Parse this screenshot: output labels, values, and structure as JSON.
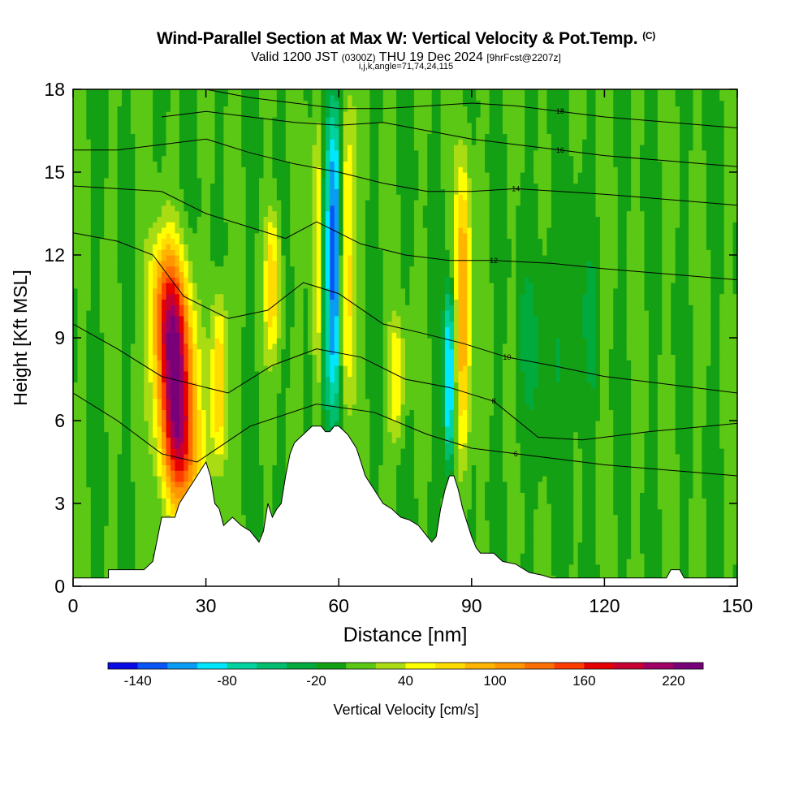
{
  "title": {
    "main": "Wind-Parallel Section at Max W: Vertical Velocity & Pot.Temp.",
    "mark": "(C)",
    "valid_prefix": "Valid 1200 JST",
    "valid_utc": "(0300Z)",
    "valid_date": "THU 19 Dec 2024",
    "forecast": "[9hrFcst@2207z]",
    "indices": "i,j,k,angle=71,74,24,115"
  },
  "chart_data": {
    "type": "heatmap",
    "xlabel": "Distance [nm]",
    "ylabel": "Height [Kft MSL]",
    "xlim": [
      0,
      150
    ],
    "ylim": [
      0,
      18
    ],
    "x_ticks": [
      "0",
      "30",
      "60",
      "90",
      "120",
      "150"
    ],
    "y_ticks": [
      "0",
      "3",
      "6",
      "9",
      "12",
      "15",
      "18"
    ],
    "colorbar": {
      "label": "Vertical Velocity [cm/s]",
      "ticks": [
        "-140",
        "-80",
        "-20",
        "40",
        "100",
        "160",
        "220"
      ],
      "levels": [
        -160,
        -140,
        -120,
        -100,
        -80,
        -60,
        -40,
        -20,
        0,
        20,
        40,
        60,
        80,
        100,
        120,
        140,
        160,
        180,
        200,
        220,
        240
      ],
      "colors": [
        "#0a0ae6",
        "#0a55f5",
        "#0a9bf5",
        "#00e6ff",
        "#00d2a0",
        "#00be6e",
        "#00aa3c",
        "#14a014",
        "#5ac814",
        "#aadc14",
        "#ffff00",
        "#ffdc00",
        "#ffb400",
        "#ff9600",
        "#ff6e00",
        "#ff3c00",
        "#e60000",
        "#c80032",
        "#a00064",
        "#780078"
      ]
    },
    "vertical_velocity_features": [
      {
        "kind": "updraft",
        "x": 23,
        "y_range": [
          2.5,
          12.5
        ],
        "peak": 240
      },
      {
        "kind": "updraft",
        "x": 33,
        "y_range": [
          4,
          11
        ],
        "peak": 80
      },
      {
        "kind": "updraft",
        "x": 45,
        "y_range": [
          8,
          14
        ],
        "peak": 70
      },
      {
        "kind": "downdraft",
        "x": 57,
        "y_range": [
          5.5,
          18
        ],
        "peak": -120
      },
      {
        "kind": "updraft",
        "x": 56,
        "y_range": [
          6,
          18
        ],
        "peak": 80
      },
      {
        "kind": "downdraft",
        "x": 59,
        "y_range": [
          5.5,
          18
        ],
        "peak": -140
      },
      {
        "kind": "updraft",
        "x": 62,
        "y_range": [
          6,
          18
        ],
        "peak": 70
      },
      {
        "kind": "updraft",
        "x": 73,
        "y_range": [
          5,
          10
        ],
        "peak": 60
      },
      {
        "kind": "downdraft",
        "x": 85,
        "y_range": [
          4,
          11
        ],
        "peak": -120
      },
      {
        "kind": "updraft",
        "x": 88,
        "y_range": [
          4,
          16
        ],
        "peak": 100
      }
    ],
    "theta_contours": [
      {
        "label": "6",
        "points": [
          [
            0,
            7.0
          ],
          [
            10,
            6.0
          ],
          [
            20,
            4.8
          ],
          [
            28,
            4.5
          ],
          [
            40,
            5.8
          ],
          [
            55,
            6.6
          ],
          [
            68,
            6.3
          ],
          [
            80,
            5.5
          ],
          [
            90,
            5.0
          ],
          [
            100,
            4.8
          ],
          [
            110,
            4.6
          ],
          [
            120,
            4.4
          ],
          [
            135,
            4.2
          ],
          [
            150,
            4.0
          ]
        ]
      },
      {
        "label": "8",
        "points": [
          [
            0,
            9.5
          ],
          [
            10,
            8.6
          ],
          [
            20,
            7.6
          ],
          [
            30,
            7.2
          ],
          [
            35,
            7.0
          ],
          [
            45,
            8.0
          ],
          [
            55,
            8.6
          ],
          [
            65,
            8.3
          ],
          [
            75,
            7.5
          ],
          [
            85,
            7.2
          ],
          [
            95,
            6.7
          ],
          [
            105,
            5.4
          ],
          [
            115,
            5.3
          ],
          [
            130,
            5.6
          ],
          [
            150,
            5.9
          ]
        ]
      },
      {
        "label": "10",
        "points": [
          [
            0,
            12.8
          ],
          [
            10,
            12.5
          ],
          [
            18,
            12.0
          ],
          [
            25,
            10.5
          ],
          [
            35,
            9.7
          ],
          [
            44,
            10.0
          ],
          [
            52,
            11.0
          ],
          [
            60,
            10.6
          ],
          [
            70,
            9.5
          ],
          [
            78,
            9.2
          ],
          [
            88,
            8.8
          ],
          [
            98,
            8.3
          ],
          [
            108,
            8.0
          ],
          [
            120,
            7.6
          ],
          [
            135,
            7.3
          ],
          [
            150,
            7.0
          ]
        ]
      },
      {
        "label": "12",
        "points": [
          [
            0,
            14.5
          ],
          [
            10,
            14.4
          ],
          [
            20,
            14.3
          ],
          [
            30,
            13.5
          ],
          [
            40,
            13.0
          ],
          [
            48,
            12.6
          ],
          [
            55,
            13.2
          ],
          [
            65,
            12.4
          ],
          [
            75,
            12.0
          ],
          [
            85,
            11.8
          ],
          [
            95,
            11.8
          ],
          [
            108,
            11.7
          ],
          [
            120,
            11.5
          ],
          [
            135,
            11.3
          ],
          [
            150,
            11.1
          ]
        ]
      },
      {
        "label": "14",
        "points": [
          [
            0,
            15.8
          ],
          [
            10,
            15.8
          ],
          [
            20,
            16.0
          ],
          [
            30,
            16.2
          ],
          [
            40,
            15.7
          ],
          [
            50,
            15.3
          ],
          [
            60,
            15.0
          ],
          [
            70,
            14.6
          ],
          [
            80,
            14.3
          ],
          [
            90,
            14.3
          ],
          [
            100,
            14.4
          ],
          [
            110,
            14.3
          ],
          [
            120,
            14.2
          ],
          [
            135,
            14.0
          ],
          [
            150,
            13.8
          ]
        ]
      },
      {
        "label": "16",
        "points": [
          [
            20,
            17.0
          ],
          [
            30,
            17.2
          ],
          [
            40,
            17.0
          ],
          [
            50,
            16.8
          ],
          [
            60,
            16.7
          ],
          [
            70,
            16.8
          ],
          [
            80,
            16.5
          ],
          [
            90,
            16.2
          ],
          [
            100,
            16.0
          ],
          [
            110,
            15.8
          ],
          [
            120,
            15.6
          ],
          [
            135,
            15.4
          ],
          [
            150,
            15.2
          ]
        ]
      },
      {
        "label": "18",
        "points": [
          [
            30,
            18.0
          ],
          [
            40,
            17.7
          ],
          [
            50,
            17.5
          ],
          [
            60,
            17.3
          ],
          [
            70,
            17.3
          ],
          [
            80,
            17.4
          ],
          [
            90,
            17.5
          ],
          [
            100,
            17.4
          ],
          [
            110,
            17.2
          ],
          [
            120,
            17.0
          ],
          [
            135,
            16.8
          ],
          [
            150,
            16.6
          ]
        ]
      }
    ],
    "terrain": [
      [
        0,
        0.3
      ],
      [
        8,
        0.3
      ],
      [
        8,
        0.6
      ],
      [
        16,
        0.6
      ],
      [
        18,
        0.9
      ],
      [
        20,
        2.5
      ],
      [
        23,
        2.5
      ],
      [
        24,
        3.0
      ],
      [
        26,
        3.5
      ],
      [
        28,
        4.0
      ],
      [
        30,
        4.5
      ],
      [
        31,
        4.0
      ],
      [
        32,
        3.0
      ],
      [
        33,
        2.8
      ],
      [
        34,
        2.2
      ],
      [
        36,
        2.5
      ],
      [
        38,
        2.2
      ],
      [
        40,
        2.0
      ],
      [
        42,
        1.6
      ],
      [
        43,
        2.0
      ],
      [
        44,
        3.0
      ],
      [
        45,
        2.5
      ],
      [
        46,
        2.8
      ],
      [
        47,
        3.0
      ],
      [
        48,
        4.0
      ],
      [
        49,
        4.8
      ],
      [
        50,
        5.2
      ],
      [
        52,
        5.5
      ],
      [
        54,
        5.8
      ],
      [
        56,
        5.8
      ],
      [
        57,
        5.6
      ],
      [
        58,
        5.6
      ],
      [
        59,
        5.8
      ],
      [
        60,
        5.8
      ],
      [
        62,
        5.5
      ],
      [
        64,
        5.0
      ],
      [
        66,
        4.0
      ],
      [
        68,
        3.5
      ],
      [
        70,
        3.0
      ],
      [
        72,
        2.8
      ],
      [
        74,
        2.5
      ],
      [
        76,
        2.4
      ],
      [
        78,
        2.2
      ],
      [
        80,
        1.8
      ],
      [
        81,
        1.6
      ],
      [
        82,
        1.8
      ],
      [
        83,
        2.8
      ],
      [
        84,
        3.5
      ],
      [
        85,
        4.0
      ],
      [
        86,
        4.0
      ],
      [
        87,
        3.5
      ],
      [
        88,
        2.8
      ],
      [
        90,
        1.8
      ],
      [
        91,
        1.4
      ],
      [
        92,
        1.2
      ],
      [
        95,
        1.2
      ],
      [
        97,
        0.9
      ],
      [
        100,
        0.8
      ],
      [
        103,
        0.5
      ],
      [
        106,
        0.4
      ],
      [
        108,
        0.3
      ],
      [
        134,
        0.3
      ],
      [
        135,
        0.6
      ],
      [
        137,
        0.6
      ],
      [
        138,
        0.3
      ],
      [
        150,
        0.3
      ]
    ]
  }
}
